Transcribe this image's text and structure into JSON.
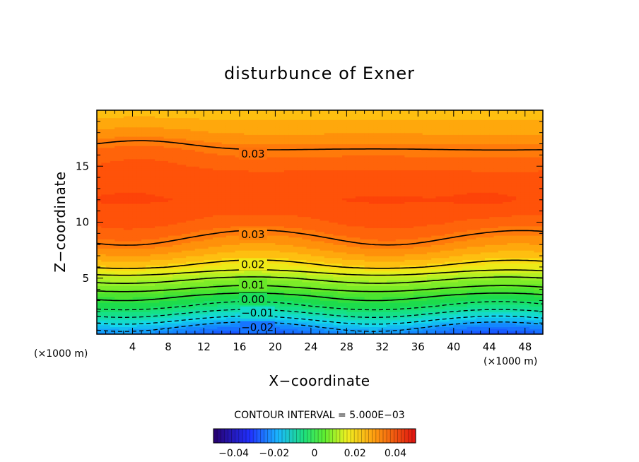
{
  "chart_data": {
    "type": "heatmap",
    "title": "disturbunce of Exner",
    "xlabel": "X−coordinate",
    "ylabel": "Z−coordinate",
    "x_unit": "(×1000 m)",
    "z_unit": "(×1000 m)",
    "xlim": [
      0,
      50
    ],
    "ylim": [
      0,
      20
    ],
    "x_ticks": [
      "4",
      "8",
      "12",
      "16",
      "20",
      "24",
      "28",
      "32",
      "36",
      "40",
      "44",
      "48"
    ],
    "y_ticks": [
      "5",
      "10",
      "15"
    ],
    "contour_labels": [
      {
        "text": "0.03",
        "x": 17.5,
        "z": 16.1
      },
      {
        "text": "0.03",
        "x": 17.5,
        "z": 8.9
      },
      {
        "text": "0.02",
        "x": 17.5,
        "z": 6.2
      },
      {
        "text": "0.01",
        "x": 17.5,
        "z": 4.4
      },
      {
        "text": "0.00",
        "x": 17.5,
        "z": 3.1
      },
      {
        "text": "−0.01",
        "x": 18.0,
        "z": 1.9
      },
      {
        "text": "−0.02",
        "x": 18.0,
        "z": 0.6
      }
    ],
    "contour_interval_text": "CONTOUR INTERVAL = 5.000E−03",
    "colorbar": {
      "range": [
        -0.05,
        0.05
      ],
      "tick_labels": [
        "−0.04",
        "−0.02",
        "0",
        "0.02",
        "0.04"
      ],
      "tick_values": [
        -0.04,
        -0.02,
        0,
        0.02,
        0.04
      ]
    },
    "contour_levels_solid": [
      0.0,
      0.005,
      0.01,
      0.015,
      0.02,
      0.03
    ],
    "contour_levels_dashed": [
      -0.005,
      -0.01,
      -0.015,
      -0.02
    ],
    "colors": {
      "low": "#1e5aff",
      "mid": "#22dd55",
      "high": "#ff4a08"
    }
  }
}
